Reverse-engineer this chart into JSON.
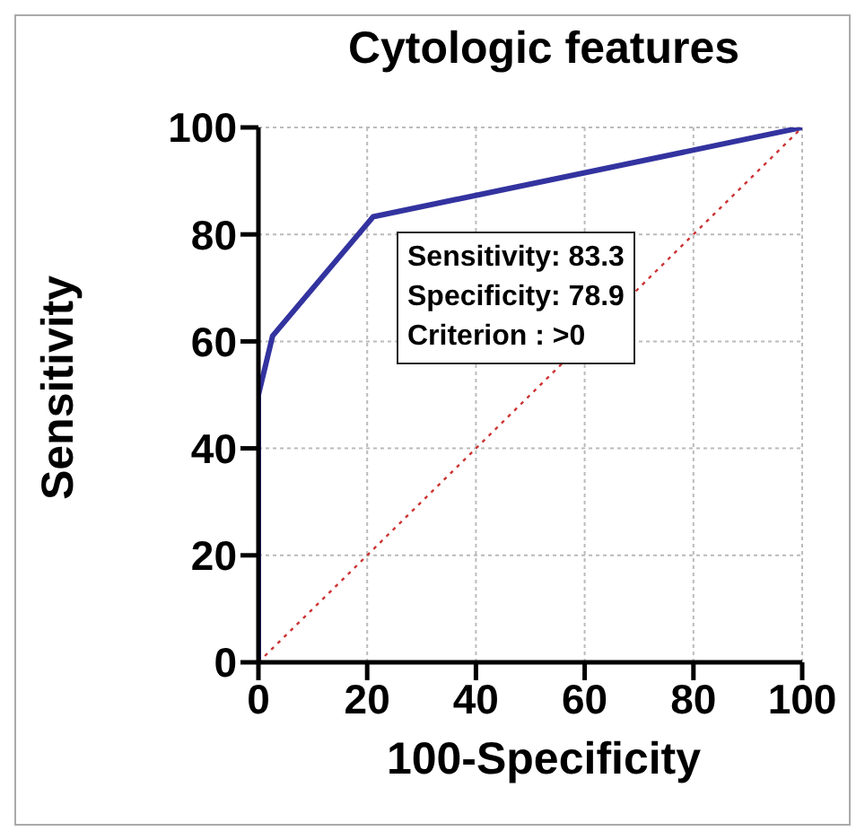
{
  "chart_data": {
    "type": "line",
    "title": "Cytologic features",
    "xlabel": "100-Specificity",
    "ylabel": "Sensitivity",
    "series": [
      {
        "color": "#3333a0",
        "x": [
          0,
          0,
          2.6,
          21.1,
          100
        ],
        "values": [
          0,
          50,
          61,
          83.3,
          100
        ],
        "line_style": "solid"
      },
      {
        "color": "#cc3333",
        "x": [
          0,
          100
        ],
        "values": [
          0,
          100
        ],
        "line_style": "dotted"
      }
    ],
    "xlim": [
      0,
      100
    ],
    "ylim": [
      0,
      100
    ],
    "xticks": [
      0,
      20,
      40,
      60,
      80,
      100
    ],
    "yticks": [
      0,
      20,
      40,
      60,
      80,
      100
    ],
    "grid": true,
    "marker": "none",
    "annotations": [
      "Sensitivity: 83.3",
      "Specificity: 78.9",
      "Criterion : >0"
    ]
  }
}
